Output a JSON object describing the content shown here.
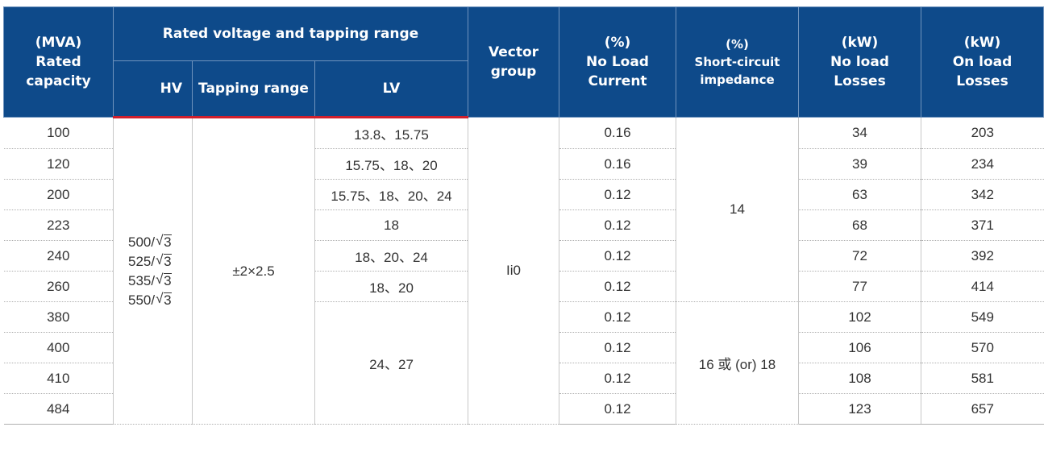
{
  "header": {
    "capacity": [
      "(MVA)",
      "Rated",
      "capacity"
    ],
    "rated_voltage_group": "Rated voltage and tapping range",
    "hv": "HV",
    "tapping_range": "Tapping range",
    "lv": "LV",
    "vector_group": [
      "Vector",
      "group"
    ],
    "no_load_current": [
      "(%)",
      "No Load",
      "Current"
    ],
    "impedance": [
      "(%)",
      "Short-circuit",
      "impedance"
    ],
    "no_load_losses": [
      "(kW)",
      "No load",
      "Losses"
    ],
    "on_load_losses": [
      "(kW)",
      "On load",
      "Losses"
    ]
  },
  "merged": {
    "hv_values": [
      {
        "base": "500/",
        "radicand": "3"
      },
      {
        "base": "525/",
        "radicand": "3"
      },
      {
        "base": "535/",
        "radicand": "3"
      },
      {
        "base": "550/",
        "radicand": "3"
      }
    ],
    "tapping": "±2×2.5",
    "vector": "Ii0",
    "impedance_a": "14",
    "impedance_b": "16 或 (or) 18",
    "lv_shared": "24、27"
  },
  "rows": [
    {
      "capacity": "100",
      "lv": "13.8、15.75",
      "current": "0.16",
      "no_load": "34",
      "on_load": "203"
    },
    {
      "capacity": "120",
      "lv": "15.75、18、20",
      "current": "0.16",
      "no_load": "39",
      "on_load": "234"
    },
    {
      "capacity": "200",
      "lv": "15.75、18、20、24",
      "current": "0.12",
      "no_load": "63",
      "on_load": "342"
    },
    {
      "capacity": "223",
      "lv": "18",
      "current": "0.12",
      "no_load": "68",
      "on_load": "371"
    },
    {
      "capacity": "240",
      "lv": "18、20、24",
      "current": "0.12",
      "no_load": "72",
      "on_load": "392"
    },
    {
      "capacity": "260",
      "lv": "18、20",
      "current": "0.12",
      "no_load": "77",
      "on_load": "414"
    },
    {
      "capacity": "380",
      "current": "0.12",
      "no_load": "102",
      "on_load": "549"
    },
    {
      "capacity": "400",
      "current": "0.12",
      "no_load": "106",
      "on_load": "570"
    },
    {
      "capacity": "410",
      "current": "0.12",
      "no_load": "108",
      "on_load": "581"
    },
    {
      "capacity": "484",
      "current": "0.12",
      "no_load": "123",
      "on_load": "657"
    }
  ],
  "colors": {
    "header_bg": "#0e4a8a",
    "header_rule": "#d0202d"
  }
}
